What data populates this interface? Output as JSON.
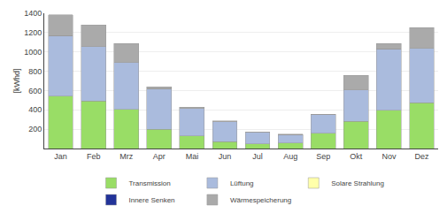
{
  "chart_data": {
    "type": "bar",
    "stacked": true,
    "categories": [
      "Jan",
      "Feb",
      "Mrz",
      "Apr",
      "Mai",
      "Jun",
      "Jul",
      "Aug",
      "Sep",
      "Okt",
      "Nov",
      "Dez"
    ],
    "series": [
      {
        "name": "Transmission",
        "color": "#99dd66",
        "values": [
          540,
          490,
          405,
          200,
          130,
          70,
          50,
          55,
          160,
          280,
          395,
          475
        ]
      },
      {
        "name": "Lüftung",
        "color": "#aabbdd",
        "values": [
          630,
          565,
          485,
          420,
          285,
          205,
          115,
          90,
          195,
          325,
          635,
          560
        ]
      },
      {
        "name": "Solare Strahlung",
        "color": "#ffffaa",
        "values": [
          0,
          0,
          0,
          0,
          0,
          0,
          0,
          0,
          0,
          0,
          0,
          0
        ]
      },
      {
        "name": "Innere Senken",
        "color": "#223399",
        "values": [
          0,
          0,
          0,
          0,
          0,
          0,
          0,
          0,
          0,
          0,
          0,
          0
        ]
      },
      {
        "name": "Wärmespeicherung",
        "color": "#aaaaaa",
        "values": [
          215,
          225,
          195,
          20,
          15,
          10,
          5,
          5,
          0,
          150,
          55,
          215
        ]
      }
    ],
    "y_label": "[kWhd]",
    "ylim": [
      0,
      1400
    ],
    "yticks": [
      200,
      400,
      600,
      800,
      1000,
      1200,
      1400
    ],
    "grid": true,
    "legend": "bottom"
  }
}
